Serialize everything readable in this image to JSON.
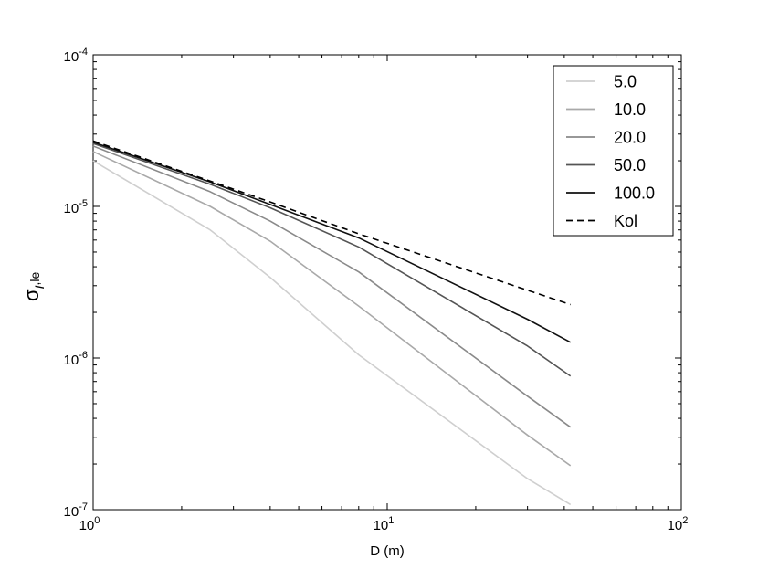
{
  "chart_data": {
    "type": "line",
    "xscale": "log",
    "yscale": "log",
    "xlim": [
      1,
      100
    ],
    "ylim": [
      1e-07,
      0.0001
    ],
    "xlabel": "D (m)",
    "ylabel": "σI,le",
    "ylabel_parts": {
      "base": "σ",
      "sub": "I",
      "sub2": ",le"
    },
    "xticks": [
      {
        "value": 1,
        "base": "10",
        "exp": "0"
      },
      {
        "value": 10,
        "base": "10",
        "exp": "1"
      },
      {
        "value": 100,
        "base": "10",
        "exp": "2"
      }
    ],
    "yticks": [
      {
        "value": 1e-07,
        "base": "10",
        "exp": "-7"
      },
      {
        "value": 1e-06,
        "base": "10",
        "exp": "-6"
      },
      {
        "value": 1e-05,
        "base": "10",
        "exp": "-5"
      },
      {
        "value": 0.0001,
        "base": "10",
        "exp": "-4"
      }
    ],
    "x": [
      1,
      2.5,
      4,
      8,
      30,
      42
    ],
    "series": [
      {
        "name": "5.0",
        "color": "#cfcfcf",
        "dash": "solid",
        "values": [
          2e-05,
          7e-06,
          3.4e-06,
          1.05e-06,
          1.6e-07,
          1.08e-07
        ]
      },
      {
        "name": "10.0",
        "color": "#a9a9a9",
        "dash": "solid",
        "values": [
          2.3e-05,
          1e-05,
          5.9e-06,
          2.2e-06,
          3.1e-07,
          1.95e-07
        ]
      },
      {
        "name": "20.0",
        "color": "#8a8a8a",
        "dash": "solid",
        "values": [
          2.5e-05,
          1.25e-05,
          8e-06,
          3.7e-06,
          5.6e-07,
          3.5e-07
        ]
      },
      {
        "name": "50.0",
        "color": "#555555",
        "dash": "solid",
        "values": [
          2.6e-05,
          1.4e-05,
          9.8e-06,
          5.4e-06,
          1.2e-06,
          7.6e-07
        ]
      },
      {
        "name": "100.0",
        "color": "#111111",
        "dash": "solid",
        "values": [
          2.65e-05,
          1.45e-05,
          1.03e-05,
          6.2e-06,
          1.8e-06,
          1.27e-06
        ]
      },
      {
        "name": "Kol",
        "color": "#000000",
        "dash": "dashed",
        "values": [
          2.7e-05,
          1.47e-05,
          1.07e-05,
          6.6e-06,
          2.8e-06,
          2.25e-06
        ]
      }
    ],
    "legend": {
      "position": "top-right"
    },
    "grid": false
  }
}
